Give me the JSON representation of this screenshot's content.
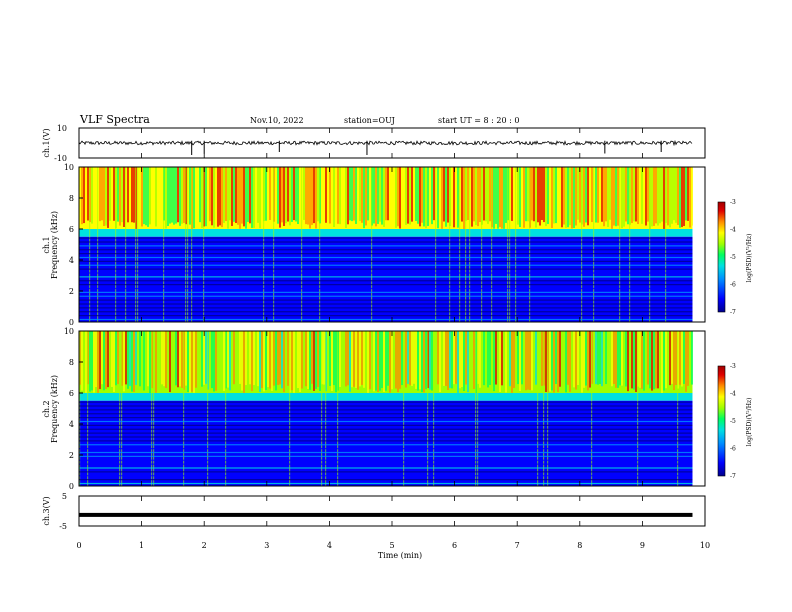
{
  "header": {
    "title": "VLF Spectra",
    "date": "Nov.10, 2022",
    "station": "station=OUJ",
    "start_time": "start  UT =   8 : 20 : 0"
  },
  "chart_data": [
    {
      "type": "line",
      "panel": "ch1-waveform",
      "ylabel": "ch.1(V)",
      "ylim": [
        -10,
        10
      ],
      "y_ticks": [
        "10",
        "-10"
      ],
      "xlim": [
        0,
        10
      ],
      "series": [
        {
          "values_description_level": 0,
          "amplitude_band": [
            -1.2,
            1.2
          ],
          "color": "#000000"
        }
      ],
      "spikes_at_min": [
        1.8,
        2.0,
        3.2,
        4.6,
        8.4,
        9.3
      ],
      "data_end_min": 9.8
    },
    {
      "type": "heatmap",
      "panel": "ch1-spectrogram",
      "ylabel": "ch.1",
      "ylabel2": "Frequency  (kHz)",
      "ylim": [
        0,
        10
      ],
      "y_ticks": [
        "0",
        "2",
        "4",
        "6",
        "8",
        "10"
      ],
      "xlim": [
        0,
        10
      ],
      "data_end_min": 9.8,
      "bands": [
        {
          "freq_range_khz": [
            6,
            10
          ],
          "log_psd_level": -4.5
        },
        {
          "freq_range_khz": [
            5.5,
            6
          ],
          "log_psd_level": -5.5
        },
        {
          "freq_range_khz": [
            0,
            5.5
          ],
          "log_psd_level": -6.4
        }
      ],
      "colorbar": {
        "label": "log(PSD)(V²/Hz)",
        "range": [
          -7,
          -3
        ],
        "ticks": [
          "-3",
          "-4",
          "-5",
          "-6",
          "-7"
        ]
      }
    },
    {
      "type": "heatmap",
      "panel": "ch2-spectrogram",
      "ylabel": "ch.2",
      "ylabel2": "Frequency  (kHz)",
      "ylim": [
        0,
        10
      ],
      "y_ticks": [
        "0",
        "2",
        "4",
        "6",
        "8",
        "10"
      ],
      "xlim": [
        0,
        10
      ],
      "data_end_min": 9.8,
      "bands": [
        {
          "freq_range_khz": [
            6,
            10
          ],
          "log_psd_level": -4.7
        },
        {
          "freq_range_khz": [
            5.5,
            6
          ],
          "log_psd_level": -5.6
        },
        {
          "freq_range_khz": [
            0,
            5.5
          ],
          "log_psd_level": -6.4
        }
      ],
      "colorbar": {
        "label": "log(PSD)(V²/Hz)",
        "range": [
          -7,
          -3
        ],
        "ticks": [
          "-3",
          "-4",
          "-5",
          "-6",
          "-7"
        ]
      }
    },
    {
      "type": "line",
      "panel": "ch3-waveform",
      "ylabel": "ch.3(V)",
      "ylim": [
        -5,
        5
      ],
      "y_ticks": [
        "5",
        "-5"
      ],
      "xlim": [
        0,
        10
      ],
      "series": [
        {
          "constant_value": -1.3,
          "color": "#000000"
        }
      ],
      "data_end_min": 9.8
    }
  ],
  "x_axis": {
    "label": "Time  (min)",
    "ticks": [
      "0",
      "1",
      "2",
      "3",
      "4",
      "5",
      "6",
      "7",
      "8",
      "9",
      "10"
    ]
  },
  "colors": {
    "colormap": [
      "#00008c",
      "#0000ff",
      "#0090ff",
      "#00e0e0",
      "#00ff60",
      "#a0ff00",
      "#ffff00",
      "#ff8c00",
      "#e00000",
      "#a00000"
    ]
  }
}
